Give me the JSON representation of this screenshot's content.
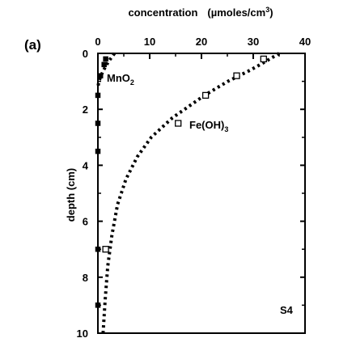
{
  "chart_data": {
    "type": "scatter",
    "panel_label": "(a)",
    "xlabel": "concentration",
    "xlabel_unit": "(µmoles/cm",
    "xlabel_unit_sup": "3",
    "xlabel_unit_close": ")",
    "ylabel": "depth (cm)",
    "xlim": [
      0,
      40
    ],
    "ylim": [
      0,
      10
    ],
    "y_inverted": true,
    "x_axis_position": "top",
    "x_ticks": [
      0,
      10,
      20,
      30,
      40
    ],
    "y_ticks": [
      0,
      2,
      4,
      6,
      8,
      10
    ],
    "station_label": "S4",
    "grid": false,
    "series": [
      {
        "name_main": "MnO",
        "name_sub": "2",
        "marker": "filled-square",
        "points": [
          {
            "x": 1.5,
            "y": 0.2
          },
          {
            "x": 1.2,
            "y": 0.4
          },
          {
            "x": 0.5,
            "y": 0.8
          },
          {
            "x": 0.0,
            "y": 1.5
          },
          {
            "x": 0.0,
            "y": 2.5
          },
          {
            "x": 0.0,
            "y": 3.5
          },
          {
            "x": 0.0,
            "y": 7.0
          },
          {
            "x": 0.0,
            "y": 9.0
          }
        ],
        "fit_curve": [
          {
            "x": 3.2,
            "y": 0.0
          },
          {
            "x": 2.4,
            "y": 0.2
          },
          {
            "x": 1.7,
            "y": 0.4
          },
          {
            "x": 1.1,
            "y": 0.6
          },
          {
            "x": 0.6,
            "y": 0.8
          },
          {
            "x": 0.2,
            "y": 1.0
          },
          {
            "x": 0.0,
            "y": 1.2
          }
        ]
      },
      {
        "name_main": "Fe(OH)",
        "name_sub": "3",
        "marker": "open-square",
        "points": [
          {
            "x": 32.0,
            "y": 0.2
          },
          {
            "x": 26.8,
            "y": 0.8
          },
          {
            "x": 20.8,
            "y": 1.5
          },
          {
            "x": 15.5,
            "y": 2.5
          },
          {
            "x": 1.5,
            "y": 7.0
          }
        ],
        "fit_curve": [
          {
            "x": 35.0,
            "y": 0.0
          },
          {
            "x": 32.3,
            "y": 0.3
          },
          {
            "x": 29.4,
            "y": 0.6
          },
          {
            "x": 25.1,
            "y": 1.0
          },
          {
            "x": 20.6,
            "y": 1.5
          },
          {
            "x": 14.4,
            "y": 2.3
          },
          {
            "x": 10.3,
            "y": 3.0
          },
          {
            "x": 7.6,
            "y": 3.7
          },
          {
            "x": 5.4,
            "y": 4.5
          },
          {
            "x": 3.8,
            "y": 5.4
          },
          {
            "x": 2.7,
            "y": 6.5
          },
          {
            "x": 1.9,
            "y": 7.6
          },
          {
            "x": 1.4,
            "y": 8.8
          },
          {
            "x": 1.0,
            "y": 10.0
          }
        ]
      }
    ]
  }
}
